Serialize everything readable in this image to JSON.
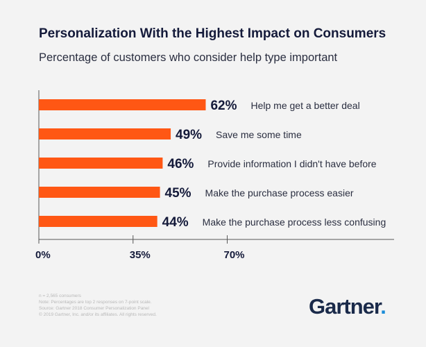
{
  "chart_data": {
    "type": "bar",
    "orientation": "horizontal",
    "title": "Personalization With the Highest Impact on Consumers",
    "subtitle": "Percentage of customers who consider help type important",
    "categories": [
      "Help me get a better deal",
      "Save me some time",
      "Provide information I didn't have before",
      "Make the purchase process easier",
      "Make the purchase process less confusing"
    ],
    "values": [
      62,
      49,
      46,
      45,
      44
    ],
    "data_labels": [
      "62%",
      "49%",
      "46%",
      "45%",
      "44%"
    ],
    "xticks": [
      0,
      35,
      70
    ],
    "xtick_labels": [
      "0%",
      "35%",
      "70%"
    ],
    "xlim": [
      0,
      132
    ],
    "grid": false,
    "bar_color": "#ff5714"
  },
  "footnote": [
    "n = 2,565 consumers",
    "Note: Percentages are top 2 responses on 7-point scale.",
    "Source: Gartner 2018 Consumer Personalization Panel",
    "© 2019 Gartner, Inc. and/or its affiliates. All rights reserved."
  ],
  "logo": {
    "text": "Gartner",
    "dot": "."
  }
}
